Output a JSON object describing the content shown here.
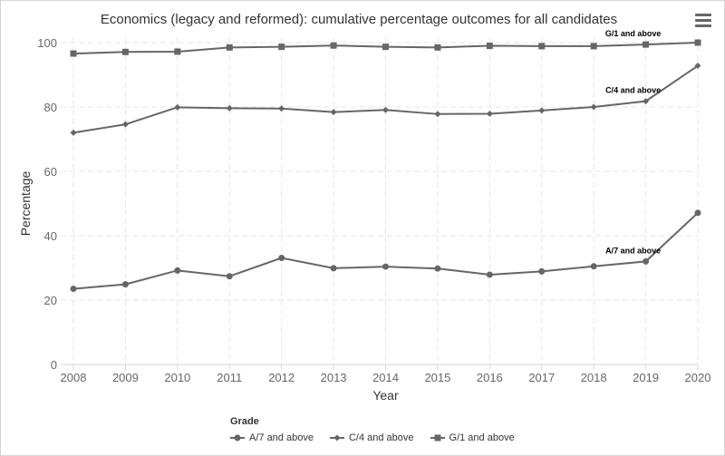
{
  "title": "Economics (legacy and reformed): cumulative percentage outcomes for all candidates",
  "chart_data": {
    "type": "line",
    "title": "Economics (legacy and reformed): cumulative percentage outcomes for all candidates",
    "xlabel": "Year",
    "ylabel": "Percentage",
    "x": [
      "2008",
      "2009",
      "2010",
      "2011",
      "2012",
      "2013",
      "2014",
      "2015",
      "2016",
      "2017",
      "2018",
      "2019",
      "2020"
    ],
    "ylim": [
      0,
      100
    ],
    "yticks": [
      0,
      20,
      40,
      60,
      80,
      100
    ],
    "grid": true,
    "legend": {
      "title": "Grade",
      "placement": "bottom"
    },
    "series": [
      {
        "name": "A/7 and above",
        "marker": "circle",
        "values": [
          23.5,
          24.9,
          29.2,
          27.4,
          33.1,
          29.9,
          30.4,
          29.8,
          27.9,
          28.9,
          30.5,
          32.0,
          47.1
        ],
        "label": "A/7 and above"
      },
      {
        "name": "C/4 and above",
        "marker": "diamond",
        "values": [
          72.0,
          74.6,
          79.9,
          79.6,
          79.5,
          78.4,
          79.1,
          77.8,
          77.9,
          78.9,
          80.0,
          81.8,
          92.8
        ],
        "label": "C/4 and above"
      },
      {
        "name": "G/1 and above",
        "marker": "square",
        "values": [
          96.6,
          97.1,
          97.2,
          98.5,
          98.7,
          99.1,
          98.7,
          98.5,
          99.0,
          98.9,
          98.9,
          99.4,
          100.0
        ],
        "label": "G/1 and above"
      }
    ],
    "colors": {
      "series": "#666666",
      "grid": "#e6e6e6",
      "axis": "#ccd6eb",
      "text": "#333333"
    }
  },
  "menu_icon": "hamburger-menu-icon"
}
